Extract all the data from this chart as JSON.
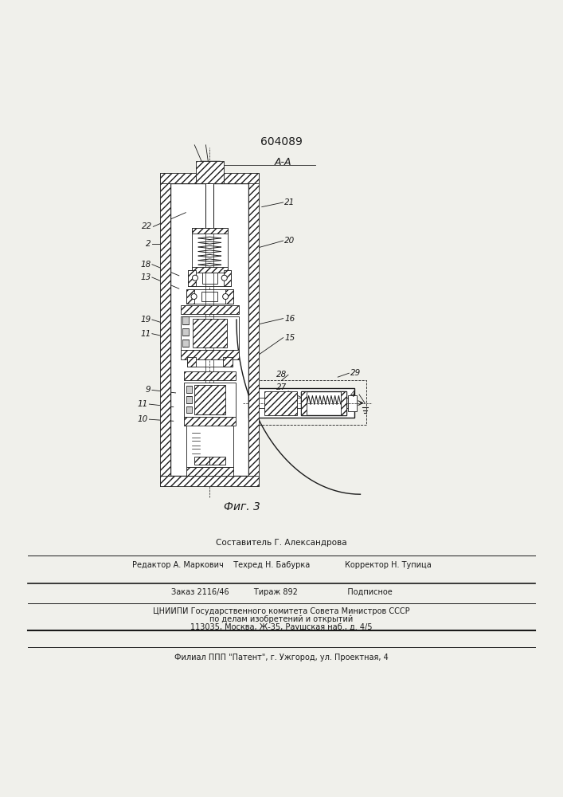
{
  "patent_number": "604089",
  "fig_label": "Фиг. 3",
  "section_label": "А-А",
  "bg_color": "#f0f0eb",
  "line_color": "#1a1a1a",
  "text_color": "#1a1a1a",
  "footer_lines": [
    "Составитель Г. Александрова",
    "Редактор А. Маркович    Техред Н. Бабурка              Корректор Н. Тупица",
    "Заказ 2116/46          Тираж 892                    Подписное",
    "ЦНИИПИ Государственного комитета Совета Министров СССР",
    "по делам изобретений и открытий",
    "113035, Москва, Ж-35, Раушская наб., д. 4/5",
    "Филиал ППП \"Патент\", г. Ужгород, ул. Проектная, 4"
  ]
}
